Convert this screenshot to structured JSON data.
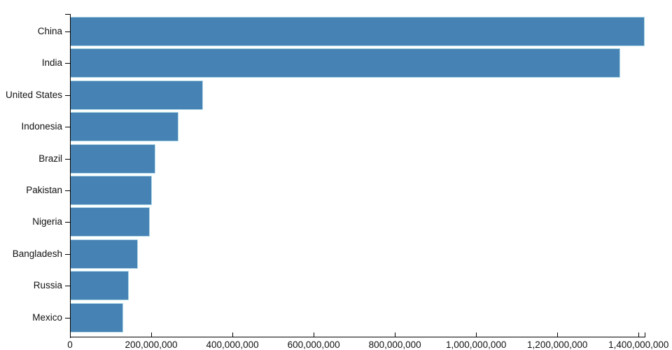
{
  "chart_data": {
    "type": "bar",
    "orientation": "horizontal",
    "title": "",
    "xlabel": "",
    "ylabel": "",
    "categories": [
      "China",
      "India",
      "United States",
      "Indonesia",
      "Brazil",
      "Pakistan",
      "Nigeria",
      "Bangladesh",
      "Russia",
      "Mexico"
    ],
    "values": [
      1415045928,
      1354051854,
      326766748,
      266794980,
      210867954,
      200813818,
      195875237,
      166368149,
      143964709,
      130759074
    ],
    "xlim": [
      0,
      1415045928
    ],
    "x_ticks": [
      0,
      200000000,
      400000000,
      600000000,
      800000000,
      1000000000,
      1200000000,
      1400000000
    ],
    "x_tick_labels": [
      "0",
      "200,000,000",
      "400,000,000",
      "600,000,000",
      "800,000,000",
      "1,000,000,000",
      "1,200,000,000",
      "1,400,000,000"
    ],
    "grid": false,
    "legend": false,
    "colors": {
      "bar_fill": "#4682b4",
      "bar_stroke": "#add8e6",
      "axis": "#000000",
      "text": "#111111",
      "background": "#ffffff"
    }
  }
}
